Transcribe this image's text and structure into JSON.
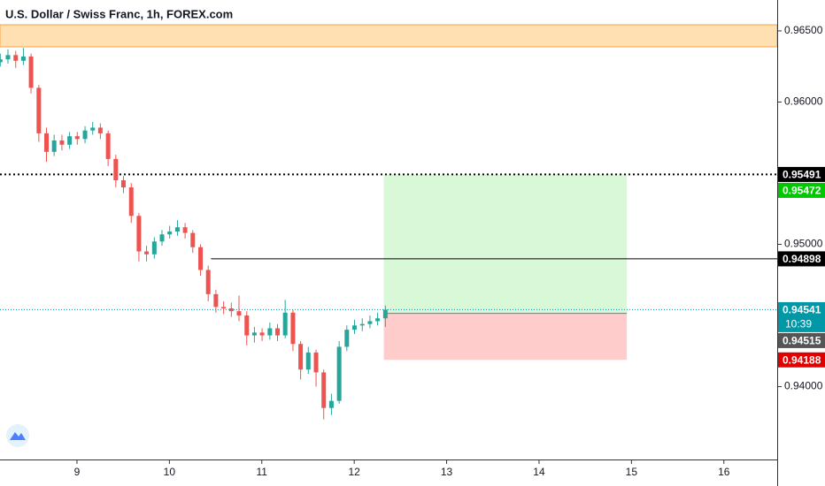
{
  "chart_data": {
    "type": "candlestick",
    "title": "U.S. Dollar / Swiss Franc, 1h, FOREX.com",
    "x": [
      8.17,
      8.253,
      8.337,
      8.42,
      8.503,
      8.587,
      8.67,
      8.753,
      8.837,
      8.92,
      9.003,
      9.087,
      9.17,
      9.253,
      9.337,
      9.42,
      9.503,
      9.587,
      9.67,
      9.753,
      9.837,
      9.92,
      10.003,
      10.087,
      10.17,
      10.253,
      10.337,
      10.42,
      10.503,
      10.587,
      10.67,
      10.753,
      10.837,
      10.92,
      11.003,
      11.087,
      11.17,
      11.253,
      11.337,
      11.42,
      11.503,
      11.587,
      11.67,
      11.753,
      11.837,
      11.92,
      12.003,
      12.087,
      12.17,
      12.253,
      12.337
    ],
    "open": [
      0.9628,
      0.963,
      0.9633,
      0.9629,
      0.9632,
      0.961,
      0.9578,
      0.9565,
      0.9573,
      0.957,
      0.9576,
      0.9574,
      0.958,
      0.9582,
      0.9578,
      0.956,
      0.9545,
      0.954,
      0.952,
      0.9495,
      0.9493,
      0.9502,
      0.9507,
      0.9509,
      0.9512,
      0.9508,
      0.9498,
      0.9482,
      0.9465,
      0.9456,
      0.9455,
      0.9453,
      0.945,
      0.9436,
      0.9438,
      0.9436,
      0.9441,
      0.9436,
      0.9452,
      0.943,
      0.9412,
      0.9424,
      0.941,
      0.9385,
      0.939,
      0.9428,
      0.944,
      0.9443,
      0.9444,
      0.9446,
      0.9448
    ],
    "high": [
      0.9634,
      0.9637,
      0.9636,
      0.9638,
      0.9634,
      0.9612,
      0.9582,
      0.9577,
      0.9577,
      0.9579,
      0.9579,
      0.9583,
      0.9586,
      0.9585,
      0.958,
      0.9563,
      0.9548,
      0.9543,
      0.9522,
      0.9499,
      0.9505,
      0.951,
      0.9513,
      0.9517,
      0.9515,
      0.951,
      0.95,
      0.9485,
      0.9468,
      0.946,
      0.9459,
      0.9464,
      0.9453,
      0.9442,
      0.9441,
      0.9445,
      0.9444,
      0.9461,
      0.9454,
      0.9432,
      0.9428,
      0.9426,
      0.9412,
      0.9395,
      0.9432,
      0.9443,
      0.9447,
      0.9448,
      0.945,
      0.9452,
      0.9457
    ],
    "low": [
      0.9625,
      0.9627,
      0.9624,
      0.9626,
      0.9606,
      0.9572,
      0.9558,
      0.9562,
      0.9566,
      0.9567,
      0.957,
      0.9571,
      0.9577,
      0.9574,
      0.9555,
      0.954,
      0.9536,
      0.9515,
      0.9488,
      0.9488,
      0.949,
      0.9499,
      0.9504,
      0.9506,
      0.9504,
      0.9494,
      0.9478,
      0.946,
      0.9452,
      0.9451,
      0.9449,
      0.9446,
      0.9429,
      0.9431,
      0.9432,
      0.9433,
      0.9432,
      0.9434,
      0.9425,
      0.9405,
      0.9409,
      0.94,
      0.9377,
      0.938,
      0.9388,
      0.9425,
      0.9437,
      0.9439,
      0.9441,
      0.9443,
      0.9442
    ],
    "close": [
      0.963,
      0.9633,
      0.9629,
      0.9632,
      0.961,
      0.9578,
      0.9565,
      0.9573,
      0.957,
      0.9576,
      0.9574,
      0.958,
      0.9582,
      0.9578,
      0.956,
      0.9545,
      0.954,
      0.952,
      0.9495,
      0.9493,
      0.9502,
      0.9507,
      0.9509,
      0.9512,
      0.9508,
      0.9498,
      0.9482,
      0.9465,
      0.9456,
      0.9455,
      0.9453,
      0.945,
      0.9436,
      0.9438,
      0.9436,
      0.9441,
      0.9436,
      0.9452,
      0.943,
      0.9412,
      0.9424,
      0.941,
      0.9385,
      0.939,
      0.9428,
      0.944,
      0.9443,
      0.9444,
      0.9446,
      0.9448,
      0.94541
    ],
    "up_color": "#26a69a",
    "down_color": "#ef5350",
    "xlim": [
      8.167,
      16.577
    ],
    "ylim": [
      0.93488,
      0.96717
    ],
    "xticks": [
      9,
      10,
      11,
      12,
      13,
      14,
      15,
      16
    ],
    "yticks": [
      {
        "value": 0.965,
        "label": "0.96500"
      },
      {
        "value": 0.96,
        "label": "0.96000"
      },
      {
        "value": 0.95,
        "label": "0.95000"
      },
      {
        "value": 0.94,
        "label": "0.94000"
      }
    ],
    "zone": {
      "low": 0.96388,
      "high": 0.96543,
      "color": "#ffe0b2",
      "border": "#f5a34a"
    },
    "levels": [
      {
        "value": 0.95491,
        "style": "dotted",
        "color": "#000000"
      },
      {
        "value": 0.94898,
        "style": "solid",
        "color": "#000000",
        "x_start": 10.45
      },
      {
        "value": 0.94541,
        "style": "dotted",
        "color": "#0097a7"
      }
    ],
    "position": {
      "x_start": 12.32,
      "x_end": 14.95,
      "target": 0.95491,
      "entry": 0.94515,
      "stop": 0.94188,
      "profit_color": "#d8f8d8",
      "loss_color": "#ffcccc"
    },
    "price_labels": [
      {
        "value": 0.95491,
        "color": "#000000"
      },
      {
        "value": 0.95472,
        "color": "#00c800"
      },
      {
        "value": 0.94898,
        "color": "#000000"
      },
      {
        "value": 0.94541,
        "color": "#0097a7",
        "countdown": "10:39"
      },
      {
        "value": 0.94515,
        "color": "#555555"
      },
      {
        "value": 0.94188,
        "color": "#e00000"
      }
    ]
  }
}
